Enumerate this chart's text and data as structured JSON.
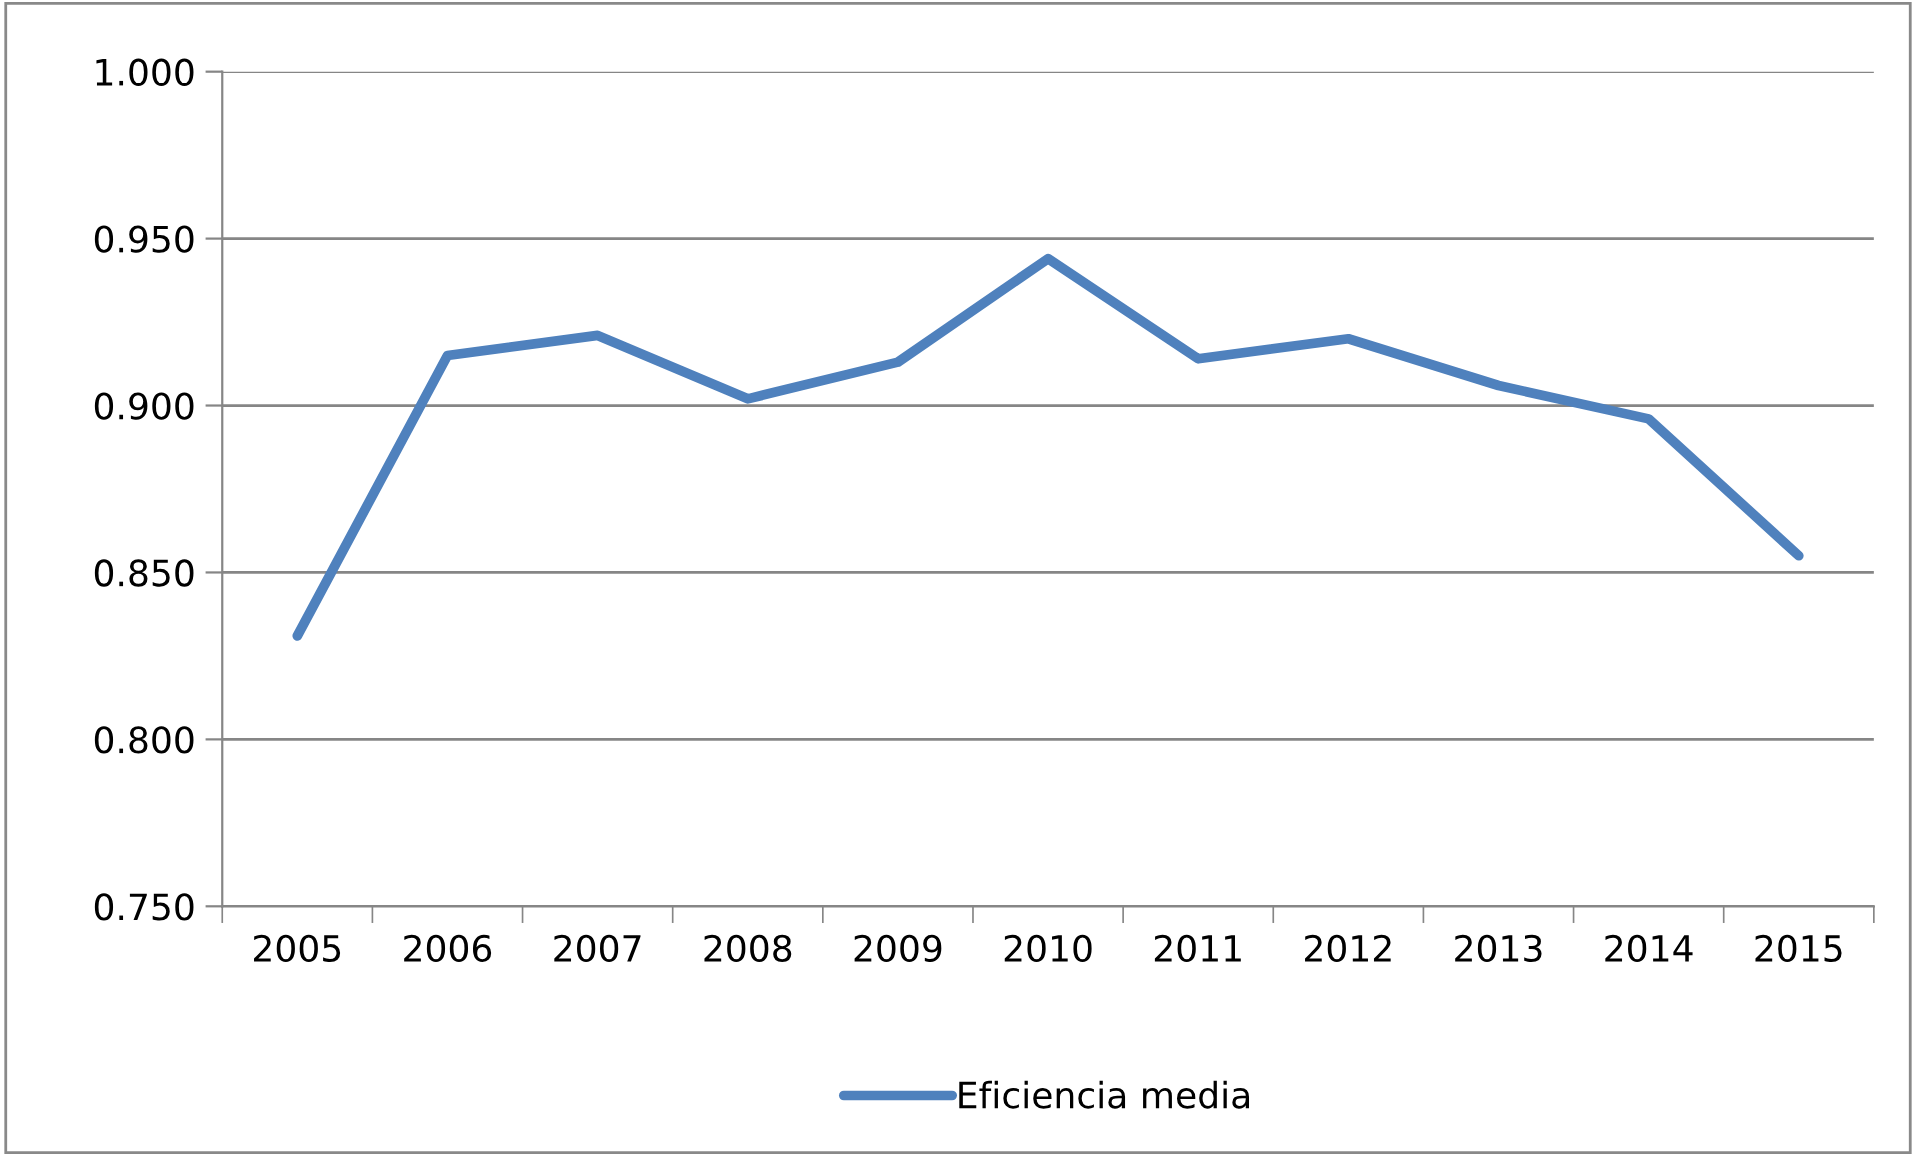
{
  "chart_data": {
    "type": "line",
    "categories": [
      "2005",
      "2006",
      "2007",
      "2008",
      "2009",
      "2010",
      "2011",
      "2012",
      "2013",
      "2014",
      "2015"
    ],
    "series": [
      {
        "name": "Eficiencia media",
        "color": "#4f81bd",
        "values": [
          0.831,
          0.915,
          0.921,
          0.902,
          0.913,
          0.944,
          0.914,
          0.92,
          0.906,
          0.896,
          0.855
        ]
      }
    ],
    "ylim": [
      0.75,
      1.0
    ],
    "yticks": [
      {
        "value": 0.75,
        "label": "0.750"
      },
      {
        "value": 0.8,
        "label": "0.800"
      },
      {
        "value": 0.85,
        "label": "0.850"
      },
      {
        "value": 0.9,
        "label": "0.900"
      },
      {
        "value": 0.95,
        "label": "0.950"
      },
      {
        "value": 1.0,
        "label": "1.000"
      }
    ],
    "grid": "y",
    "legend": "bottom",
    "marker": "none",
    "line_style": "solid"
  }
}
